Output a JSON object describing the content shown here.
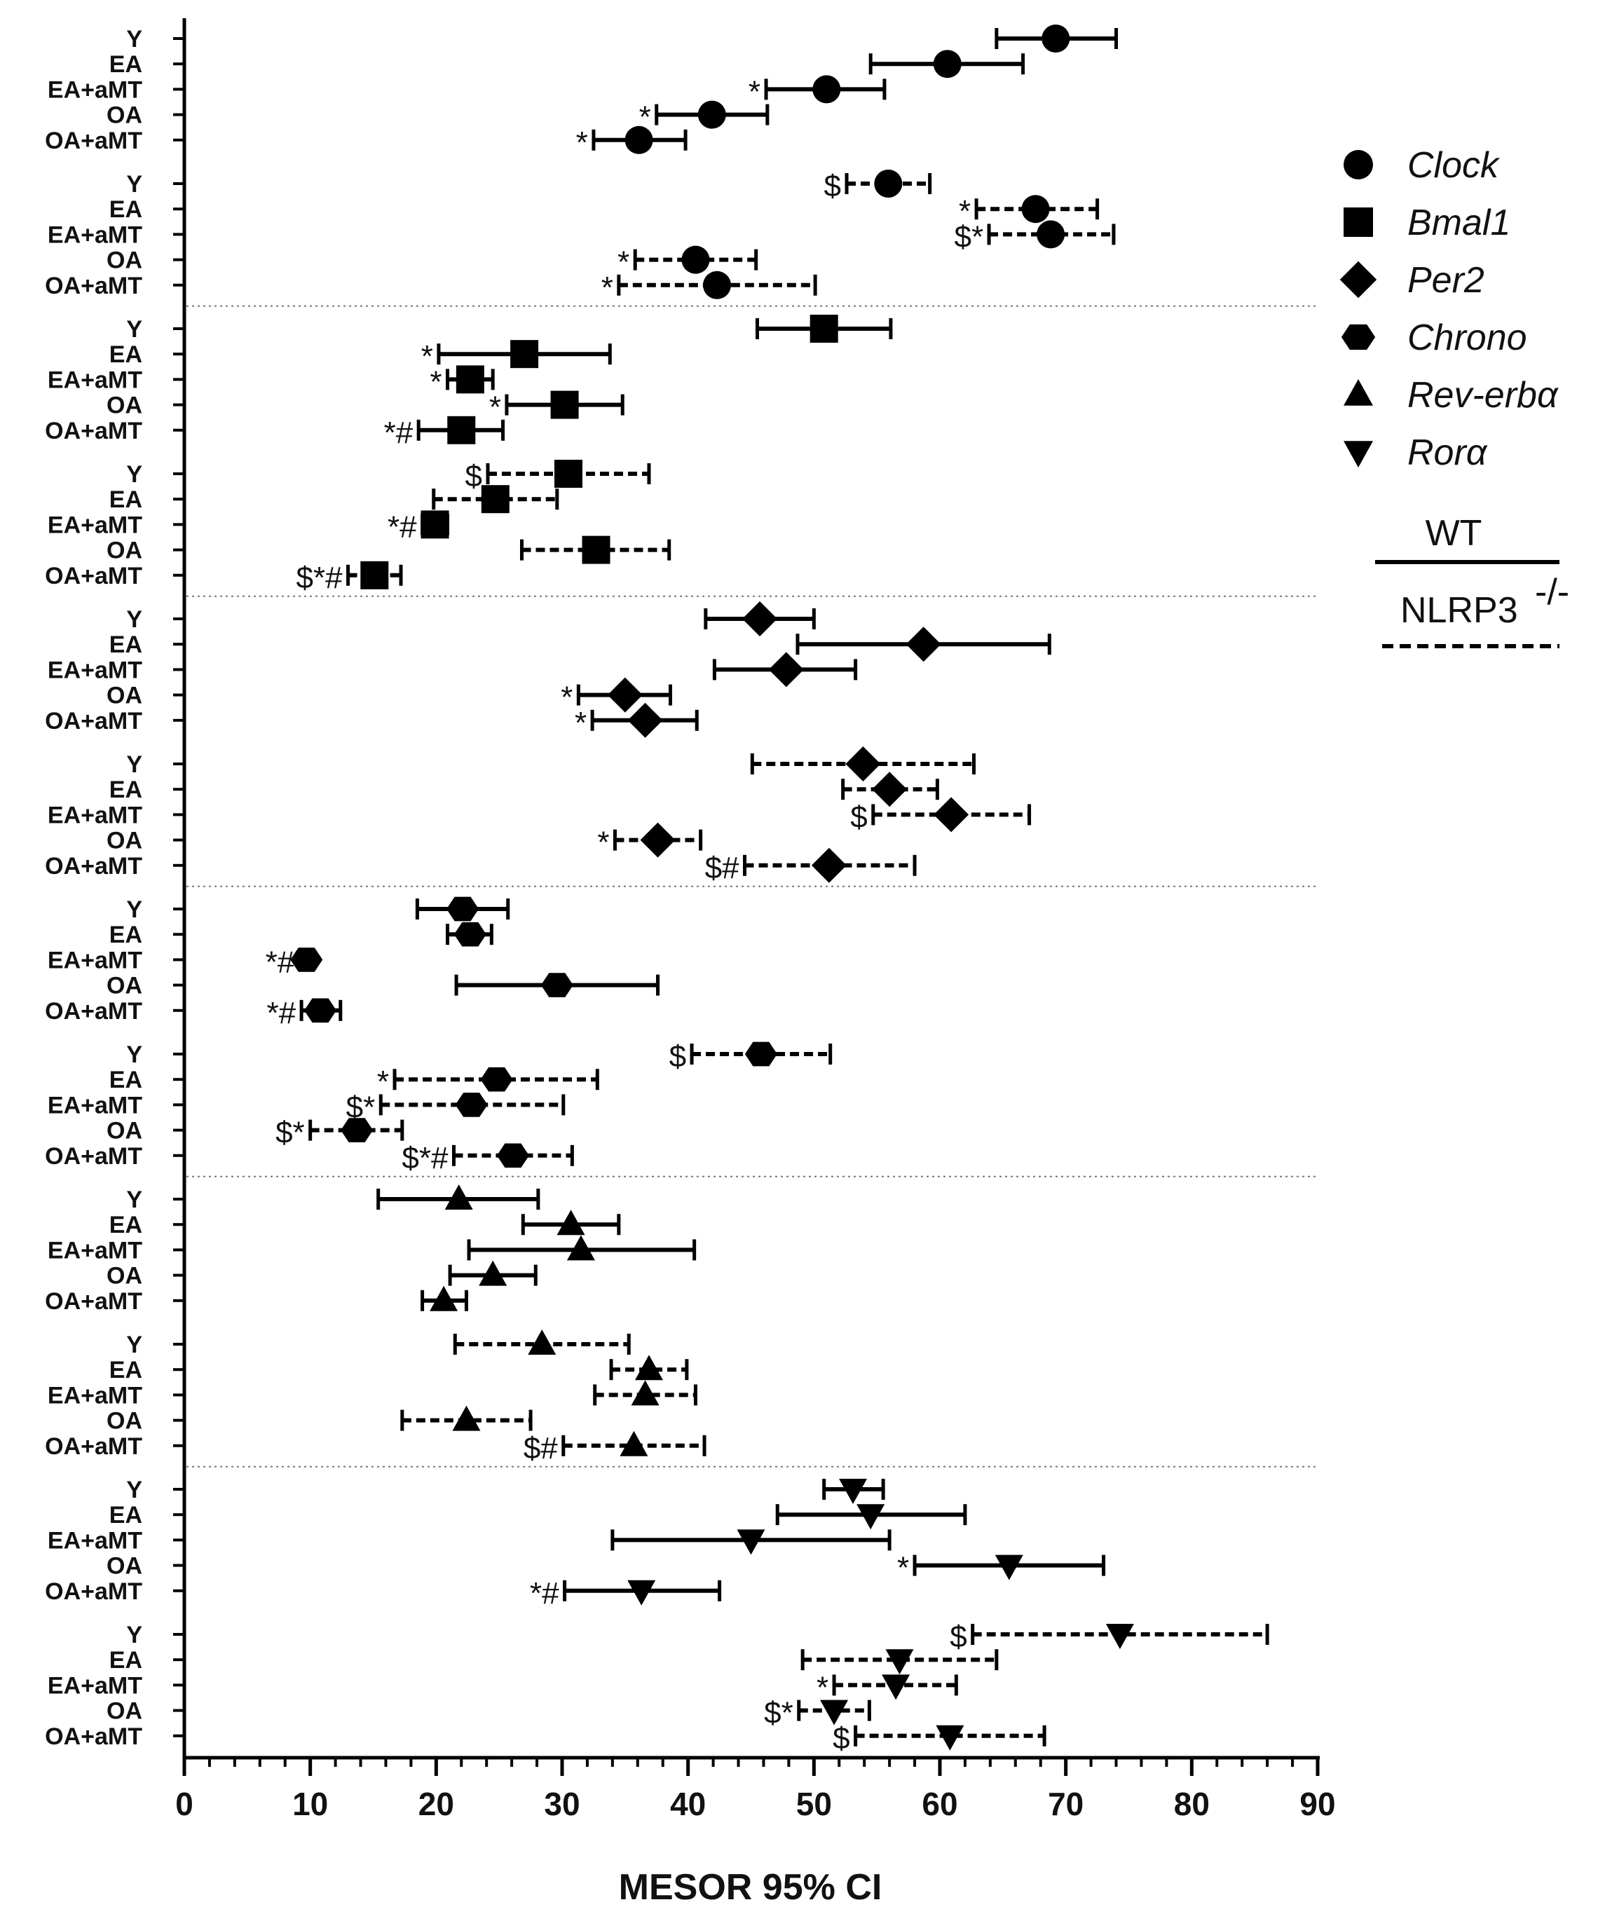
{
  "chart_data": {
    "type": "forest",
    "title": "",
    "xlabel": "MESOR 95% CI",
    "xlim": [
      0,
      90
    ],
    "xticks": [
      0,
      10,
      20,
      30,
      40,
      50,
      60,
      70,
      80,
      90
    ],
    "group_labels": [
      "Y",
      "EA",
      "EA+aMT",
      "OA",
      "OA+aMT"
    ],
    "legend": {
      "genes": [
        {
          "name": "Clock",
          "marker": "circle"
        },
        {
          "name": "Bmal1",
          "marker": "square"
        },
        {
          "name": "Per2",
          "marker": "diamond"
        },
        {
          "name": "Chrono",
          "marker": "hexagon"
        },
        {
          "name": "Rev-erbα",
          "marker": "triangle-up"
        },
        {
          "name": "Rorα",
          "marker": "triangle-down"
        }
      ],
      "line_styles": [
        {
          "name": "WT",
          "style": "solid"
        },
        {
          "name": "NLRP3",
          "superscript": "-/-",
          "style": "dashed"
        }
      ]
    },
    "blocks": [
      {
        "gene": "Clock",
        "genotype": "WT",
        "marker": "circle",
        "style": "solid",
        "rows": [
          {
            "label": "Y",
            "mean": 69.2,
            "lo": 64.5,
            "hi": 74.0,
            "annot": ""
          },
          {
            "label": "EA",
            "mean": 60.6,
            "lo": 54.5,
            "hi": 66.6,
            "annot": ""
          },
          {
            "label": "EA+aMT",
            "mean": 51.0,
            "lo": 46.2,
            "hi": 55.6,
            "annot": "*"
          },
          {
            "label": "OA",
            "mean": 41.9,
            "lo": 37.5,
            "hi": 46.3,
            "annot": "*"
          },
          {
            "label": "OA+aMT",
            "mean": 36.1,
            "lo": 32.5,
            "hi": 39.8,
            "annot": "*"
          }
        ]
      },
      {
        "gene": "Clock",
        "genotype": "NLRP3-/-",
        "marker": "circle",
        "style": "dashed",
        "rows": [
          {
            "label": "Y",
            "mean": 55.9,
            "lo": 52.6,
            "hi": 59.2,
            "annot": "$"
          },
          {
            "label": "EA",
            "mean": 67.6,
            "lo": 62.9,
            "hi": 72.5,
            "annot": "*"
          },
          {
            "label": "EA+aMT",
            "mean": 68.8,
            "lo": 63.9,
            "hi": 73.8,
            "annot": "$*"
          },
          {
            "label": "OA",
            "mean": 40.6,
            "lo": 35.8,
            "hi": 45.4,
            "annot": "*"
          },
          {
            "label": "OA+aMT",
            "mean": 42.3,
            "lo": 34.5,
            "hi": 50.1,
            "annot": "*"
          }
        ]
      },
      {
        "gene": "Bmal1",
        "genotype": "WT",
        "marker": "square",
        "style": "solid",
        "rows": [
          {
            "label": "Y",
            "mean": 50.8,
            "lo": 45.5,
            "hi": 56.1,
            "annot": ""
          },
          {
            "label": "EA",
            "mean": 27.0,
            "lo": 20.2,
            "hi": 33.8,
            "annot": "*"
          },
          {
            "label": "EA+aMT",
            "mean": 22.7,
            "lo": 20.9,
            "hi": 24.5,
            "annot": "*"
          },
          {
            "label": "OA",
            "mean": 30.2,
            "lo": 25.6,
            "hi": 34.8,
            "annot": "*"
          },
          {
            "label": "OA+aMT",
            "mean": 22.0,
            "lo": 18.6,
            "hi": 25.3,
            "annot": "*#"
          }
        ]
      },
      {
        "gene": "Bmal1",
        "genotype": "NLRP3-/-",
        "marker": "square",
        "style": "dashed",
        "rows": [
          {
            "label": "Y",
            "mean": 30.5,
            "lo": 24.1,
            "hi": 36.9,
            "annot": "$"
          },
          {
            "label": "EA",
            "mean": 24.7,
            "lo": 19.8,
            "hi": 29.6,
            "annot": ""
          },
          {
            "label": "EA+aMT",
            "mean": 19.9,
            "lo": 18.9,
            "hi": 20.9,
            "annot": "*#"
          },
          {
            "label": "OA",
            "mean": 32.7,
            "lo": 26.8,
            "hi": 38.5,
            "annot": ""
          },
          {
            "label": "OA+aMT",
            "mean": 15.1,
            "lo": 13.0,
            "hi": 17.2,
            "annot": "$*#"
          }
        ]
      },
      {
        "gene": "Per2",
        "genotype": "WT",
        "marker": "diamond",
        "style": "solid",
        "rows": [
          {
            "label": "Y",
            "mean": 45.7,
            "lo": 41.4,
            "hi": 50.0,
            "annot": ""
          },
          {
            "label": "EA",
            "mean": 58.7,
            "lo": 48.7,
            "hi": 68.7,
            "annot": ""
          },
          {
            "label": "EA+aMT",
            "mean": 47.8,
            "lo": 42.1,
            "hi": 53.3,
            "annot": ""
          },
          {
            "label": "OA",
            "mean": 35.0,
            "lo": 31.3,
            "hi": 38.6,
            "annot": "*"
          },
          {
            "label": "OA+aMT",
            "mean": 36.6,
            "lo": 32.4,
            "hi": 40.7,
            "annot": "*"
          }
        ]
      },
      {
        "gene": "Per2",
        "genotype": "NLRP3-/-",
        "marker": "diamond",
        "style": "dashed",
        "rows": [
          {
            "label": "Y",
            "mean": 53.9,
            "lo": 45.1,
            "hi": 62.7,
            "annot": ""
          },
          {
            "label": "EA",
            "mean": 56.0,
            "lo": 52.3,
            "hi": 59.8,
            "annot": ""
          },
          {
            "label": "EA+aMT",
            "mean": 60.9,
            "lo": 54.7,
            "hi": 67.1,
            "annot": "$"
          },
          {
            "label": "OA",
            "mean": 37.6,
            "lo": 34.2,
            "hi": 41.0,
            "annot": "*"
          },
          {
            "label": "OA+aMT",
            "mean": 51.2,
            "lo": 44.5,
            "hi": 58.0,
            "annot": "$#"
          }
        ]
      },
      {
        "gene": "Chrono",
        "genotype": "WT",
        "marker": "hexagon",
        "style": "solid",
        "rows": [
          {
            "label": "Y",
            "mean": 22.1,
            "lo": 18.5,
            "hi": 25.7,
            "annot": ""
          },
          {
            "label": "EA",
            "mean": 22.7,
            "lo": 20.9,
            "hi": 24.4,
            "annot": ""
          },
          {
            "label": "EA+aMT",
            "mean": 9.7,
            "lo": 9.2,
            "hi": 10.2,
            "annot": "*#"
          },
          {
            "label": "OA",
            "mean": 29.6,
            "lo": 21.6,
            "hi": 37.6,
            "annot": ""
          },
          {
            "label": "OA+aMT",
            "mean": 10.8,
            "lo": 9.3,
            "hi": 12.4,
            "annot": "*#"
          }
        ]
      },
      {
        "gene": "Chrono",
        "genotype": "NLRP3-/-",
        "marker": "hexagon",
        "style": "dashed",
        "rows": [
          {
            "label": "Y",
            "mean": 45.8,
            "lo": 40.3,
            "hi": 51.3,
            "annot": "$"
          },
          {
            "label": "EA",
            "mean": 24.8,
            "lo": 16.7,
            "hi": 32.8,
            "annot": "*"
          },
          {
            "label": "EA+aMT",
            "mean": 22.8,
            "lo": 15.6,
            "hi": 30.1,
            "annot": "$*"
          },
          {
            "label": "OA",
            "mean": 13.7,
            "lo": 10.0,
            "hi": 17.3,
            "annot": "$*"
          },
          {
            "label": "OA+aMT",
            "mean": 26.1,
            "lo": 21.4,
            "hi": 30.8,
            "annot": "$*#"
          }
        ]
      },
      {
        "gene": "Rev-erbα",
        "genotype": "WT",
        "marker": "triangle-up",
        "style": "solid",
        "rows": [
          {
            "label": "Y",
            "mean": 21.8,
            "lo": 15.4,
            "hi": 28.1,
            "annot": ""
          },
          {
            "label": "EA",
            "mean": 30.7,
            "lo": 26.9,
            "hi": 34.5,
            "annot": ""
          },
          {
            "label": "EA+aMT",
            "mean": 31.5,
            "lo": 22.6,
            "hi": 40.5,
            "annot": ""
          },
          {
            "label": "OA",
            "mean": 24.5,
            "lo": 21.1,
            "hi": 27.9,
            "annot": ""
          },
          {
            "label": "OA+aMT",
            "mean": 20.6,
            "lo": 18.9,
            "hi": 22.4,
            "annot": ""
          }
        ]
      },
      {
        "gene": "Rev-erbα",
        "genotype": "NLRP3-/-",
        "marker": "triangle-up",
        "style": "dashed",
        "rows": [
          {
            "label": "Y",
            "mean": 28.4,
            "lo": 21.5,
            "hi": 35.3,
            "annot": ""
          },
          {
            "label": "EA",
            "mean": 36.9,
            "lo": 33.9,
            "hi": 39.9,
            "annot": ""
          },
          {
            "label": "EA+aMT",
            "mean": 36.6,
            "lo": 32.6,
            "hi": 40.6,
            "annot": ""
          },
          {
            "label": "OA",
            "mean": 22.4,
            "lo": 17.3,
            "hi": 27.5,
            "annot": ""
          },
          {
            "label": "OA+aMT",
            "mean": 35.7,
            "lo": 30.1,
            "hi": 41.3,
            "annot": "$#"
          }
        ]
      },
      {
        "gene": "Rorα",
        "genotype": "WT",
        "marker": "triangle-down",
        "style": "solid",
        "rows": [
          {
            "label": "Y",
            "mean": 53.1,
            "lo": 50.8,
            "hi": 55.5,
            "annot": ""
          },
          {
            "label": "EA",
            "mean": 54.5,
            "lo": 47.1,
            "hi": 62.0,
            "annot": ""
          },
          {
            "label": "EA+aMT",
            "mean": 45.0,
            "lo": 34.0,
            "hi": 56.0,
            "annot": ""
          },
          {
            "label": "OA",
            "mean": 65.5,
            "lo": 58.0,
            "hi": 73.0,
            "annot": "*"
          },
          {
            "label": "OA+aMT",
            "mean": 36.3,
            "lo": 30.2,
            "hi": 42.5,
            "annot": "*#"
          }
        ]
      },
      {
        "gene": "Rorα",
        "genotype": "NLRP3-/-",
        "marker": "triangle-down",
        "style": "dashed",
        "rows": [
          {
            "label": "Y",
            "mean": 74.3,
            "lo": 62.6,
            "hi": 86.0,
            "annot": "$"
          },
          {
            "label": "EA",
            "mean": 56.8,
            "lo": 49.1,
            "hi": 64.5,
            "annot": ""
          },
          {
            "label": "EA+aMT",
            "mean": 56.5,
            "lo": 51.6,
            "hi": 61.3,
            "annot": "*"
          },
          {
            "label": "OA",
            "mean": 51.6,
            "lo": 48.8,
            "hi": 54.4,
            "annot": "$*"
          },
          {
            "label": "OA+aMT",
            "mean": 60.8,
            "lo": 53.3,
            "hi": 68.3,
            "annot": "$"
          }
        ]
      }
    ]
  }
}
